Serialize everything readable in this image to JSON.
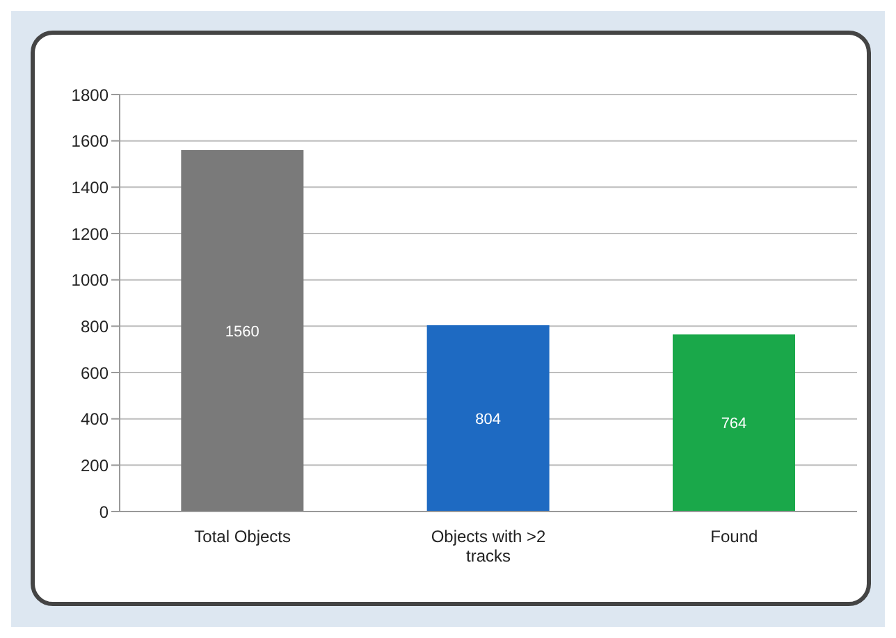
{
  "chart_data": {
    "type": "bar",
    "categories": [
      "Total Objects",
      "Objects with >2 tracks",
      "Found"
    ],
    "values": [
      1560,
      804,
      764
    ],
    "colors": [
      "#7a7a7a",
      "#1e6ac2",
      "#1aa84a"
    ],
    "ylim": [
      0,
      1800
    ],
    "yticks": [
      0,
      200,
      400,
      600,
      800,
      1000,
      1200,
      1400,
      1600,
      1800
    ],
    "grid": "y",
    "data_labels": true
  }
}
